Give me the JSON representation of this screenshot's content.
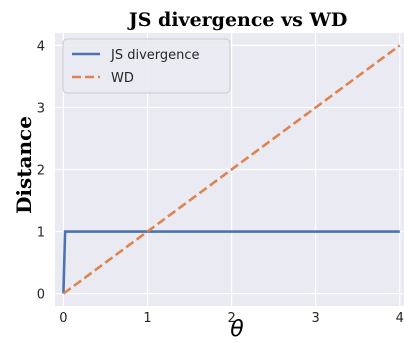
{
  "chart_data": {
    "type": "line",
    "title": "JS divergence vs WD",
    "xlabel": "θ",
    "ylabel": "Distance",
    "xlim": [
      -0.1,
      4.05
    ],
    "ylim": [
      -0.2,
      4.2
    ],
    "xticks": [
      0,
      1,
      2,
      3,
      4
    ],
    "yticks": [
      0,
      1,
      2,
      3,
      4
    ],
    "grid": true,
    "legend_position": "top-left",
    "series": [
      {
        "name": "JS divergence",
        "style": "solid",
        "color": "#4c72b0",
        "x": [
          0,
          0.02,
          4
        ],
        "y": [
          0,
          1,
          1
        ]
      },
      {
        "name": "WD",
        "style": "dashed",
        "color": "#dd8452",
        "x": [
          0,
          4
        ],
        "y": [
          0,
          4
        ]
      }
    ]
  }
}
